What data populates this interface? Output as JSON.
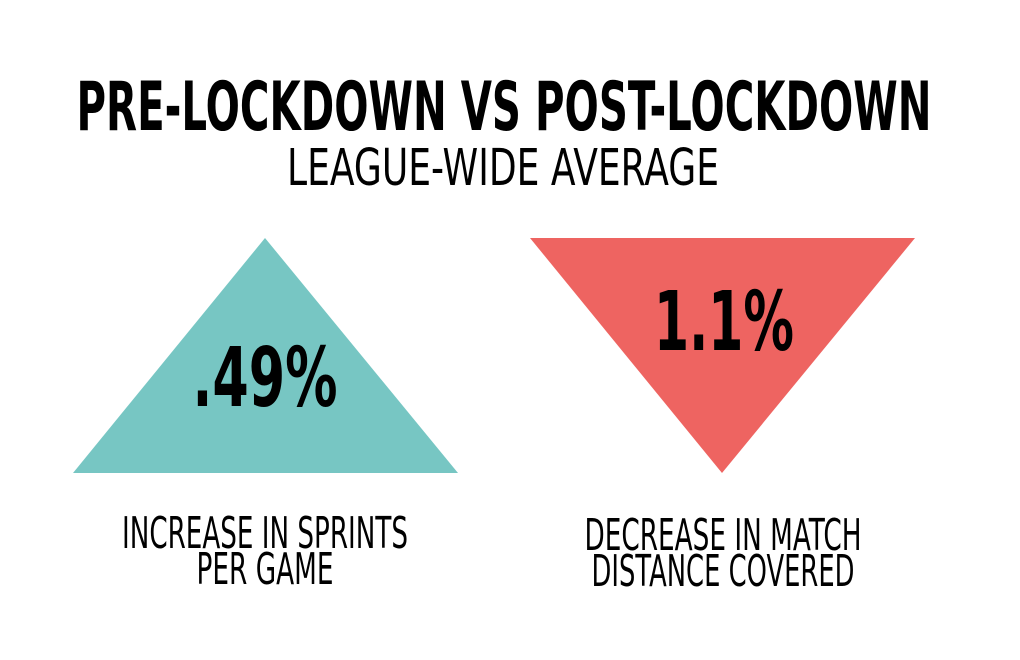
{
  "header": {
    "title": "PRE-LOCKDOWN VS POST-LOCKDOWN",
    "subtitle": "LEAGUE-WIDE AVERAGE"
  },
  "stats": [
    {
      "value": ".49%",
      "caption": [
        "INCREASE IN SPRINTS",
        "PER GAME"
      ]
    },
    {
      "value": "1.1%",
      "caption": [
        "DECREASE IN MATCH",
        "DISTANCE COVERED"
      ]
    }
  ]
}
